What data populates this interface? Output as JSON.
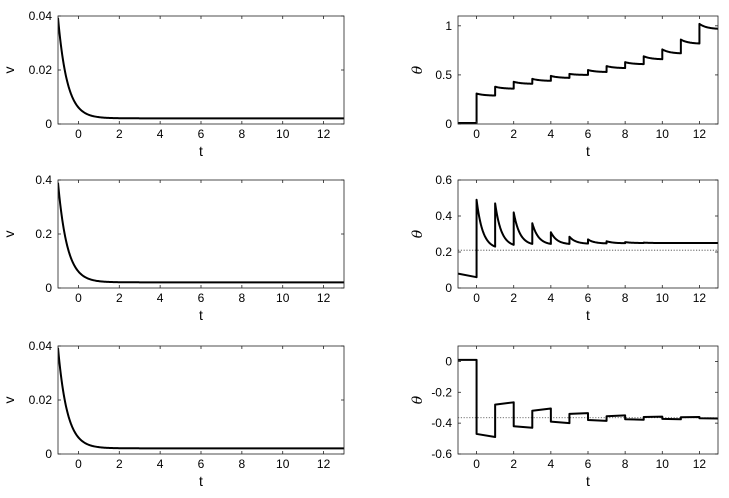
{
  "chart_data": [
    {
      "id": "p1",
      "type": "line",
      "xlabel": "t",
      "ylabel": "v",
      "ylabel_style": "plain",
      "xlim": [
        -1,
        13
      ],
      "ylim": [
        0,
        0.04
      ],
      "xticks": [
        0,
        2,
        4,
        6,
        8,
        10,
        12
      ],
      "yticks": [
        0,
        0.02,
        0.04
      ],
      "ytick_labels": [
        "0",
        "0.02",
        "0.04"
      ],
      "series": [
        {
          "kind": "decay",
          "y0": 0.0393,
          "yinf": 0.0021,
          "tau": 0.45,
          "t0": -1
        }
      ]
    },
    {
      "id": "p2",
      "type": "line",
      "xlabel": "t",
      "ylabel": "θ",
      "ylabel_style": "greek",
      "xlim": [
        -1,
        13
      ],
      "ylim": [
        0,
        1.1
      ],
      "xticks": [
        0,
        2,
        4,
        6,
        8,
        10,
        12
      ],
      "yticks": [
        0,
        0.5,
        1
      ],
      "ytick_labels": [
        "0",
        "0.5",
        "1"
      ],
      "series": [
        {
          "kind": "sawtooth",
          "pre": 0.01,
          "impulse_times": [
            0,
            1,
            2,
            3,
            4,
            5,
            6,
            7,
            8,
            9,
            10,
            11,
            12
          ],
          "peaks": [
            0.31,
            0.38,
            0.43,
            0.46,
            0.49,
            0.51,
            0.55,
            0.59,
            0.63,
            0.69,
            0.76,
            0.86,
            1.02
          ],
          "troughs": [
            0.29,
            0.36,
            0.41,
            0.44,
            0.47,
            0.5,
            0.53,
            0.57,
            0.61,
            0.66,
            0.72,
            0.82,
            0.97
          ],
          "decay_rate": 2.5
        }
      ]
    },
    {
      "id": "p3",
      "type": "line",
      "xlabel": "t",
      "ylabel": "v",
      "ylabel_style": "plain",
      "xlim": [
        -1,
        13
      ],
      "ylim": [
        0,
        0.4
      ],
      "xticks": [
        0,
        2,
        4,
        6,
        8,
        10,
        12
      ],
      "yticks": [
        0,
        0.2,
        0.4
      ],
      "ytick_labels": [
        "0",
        "0.2",
        "0.4"
      ],
      "series": [
        {
          "kind": "decay",
          "y0": 0.39,
          "yinf": 0.021,
          "tau": 0.45,
          "t0": -1
        }
      ]
    },
    {
      "id": "p4",
      "type": "line",
      "xlabel": "t",
      "ylabel": "θ",
      "ylabel_style": "greek",
      "xlim": [
        -1,
        13
      ],
      "ylim": [
        0,
        0.6
      ],
      "xticks": [
        0,
        2,
        4,
        6,
        8,
        10,
        12
      ],
      "yticks": [
        0,
        0.2,
        0.4,
        0.6
      ],
      "ytick_labels": [
        "0",
        "0.2",
        "0.4",
        "0.6"
      ],
      "reference_line": {
        "y": 0.21,
        "style": "dotted"
      },
      "series": [
        {
          "kind": "sawtooth",
          "pre": [
            0.08,
            0.06
          ],
          "impulse_times": [
            0,
            1,
            2,
            3,
            4,
            5,
            6,
            7,
            8,
            9,
            10,
            11,
            12
          ],
          "peaks": [
            0.49,
            0.47,
            0.42,
            0.36,
            0.31,
            0.285,
            0.27,
            0.26,
            0.255,
            0.252,
            0.25,
            0.25,
            0.25
          ],
          "troughs": [
            0.23,
            0.24,
            0.245,
            0.245,
            0.245,
            0.247,
            0.248,
            0.249,
            0.25,
            0.25,
            0.25,
            0.25,
            0.25
          ],
          "decay_rate": 3.0
        }
      ]
    },
    {
      "id": "p5",
      "type": "line",
      "xlabel": "t",
      "ylabel": "v",
      "ylabel_style": "plain",
      "xlim": [
        -1,
        13
      ],
      "ylim": [
        0,
        0.04
      ],
      "xticks": [
        0,
        2,
        4,
        6,
        8,
        10,
        12
      ],
      "yticks": [
        0,
        0.02,
        0.04
      ],
      "ytick_labels": [
        "0",
        "0.02",
        "0.04"
      ],
      "series": [
        {
          "kind": "decay",
          "y0": 0.0393,
          "yinf": 0.0021,
          "tau": 0.45,
          "t0": -1
        }
      ]
    },
    {
      "id": "p6",
      "type": "line",
      "xlabel": "t",
      "ylabel": "θ",
      "ylabel_style": "greek",
      "xlim": [
        -1,
        13
      ],
      "ylim": [
        -0.6,
        0.1
      ],
      "xticks": [
        0,
        2,
        4,
        6,
        8,
        10,
        12
      ],
      "yticks": [
        -0.6,
        -0.4,
        -0.2,
        0
      ],
      "ytick_labels": [
        "-0.6",
        "-0.4",
        "-0.2",
        "0"
      ],
      "reference_line": {
        "y": -0.365,
        "style": "dotted"
      },
      "series": [
        {
          "kind": "step",
          "pre": 0.01,
          "impulse_times": [
            0,
            1,
            2,
            3,
            4,
            5,
            6,
            7,
            8,
            9,
            10,
            11,
            12
          ],
          "starts": [
            -0.47,
            -0.28,
            -0.42,
            -0.32,
            -0.39,
            -0.34,
            -0.38,
            -0.355,
            -0.375,
            -0.36,
            -0.372,
            -0.362,
            -0.368
          ],
          "ends": [
            -0.49,
            -0.265,
            -0.43,
            -0.305,
            -0.4,
            -0.335,
            -0.385,
            -0.35,
            -0.378,
            -0.358,
            -0.375,
            -0.36,
            -0.37
          ]
        }
      ]
    }
  ]
}
